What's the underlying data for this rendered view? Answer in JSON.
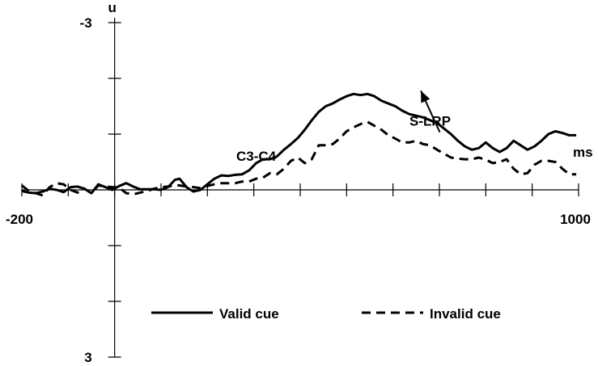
{
  "chart_data": {
    "type": "line",
    "title": "",
    "xlabel": "ms",
    "ylabel": "u",
    "x_unit_label": "ms",
    "y_unit_label": "u",
    "xlim": [
      -200,
      1000
    ],
    "ylim": [
      3,
      -3
    ],
    "y_inverted": true,
    "x_tick_step": 100,
    "y_tick_step": 1,
    "x_tick_labels": [
      {
        "value": -200,
        "text": "-200"
      },
      {
        "value": 1000,
        "text": "1000"
      }
    ],
    "y_tick_labels": [
      {
        "value": -3,
        "text": "-3"
      },
      {
        "value": 3,
        "text": "3"
      }
    ],
    "annotations": [
      {
        "text": "C3-C4",
        "x": 305,
        "y": -0.52
      },
      {
        "text": "S-LRP",
        "x": 680,
        "y": -1.15,
        "target_x": 660,
        "target_y": -1.72,
        "arrow": true
      }
    ],
    "legend": {
      "position": "bottom-center"
    },
    "series": [
      {
        "name": "Valid cue",
        "style": "solid",
        "color": "#000000",
        "x": [
          -200,
          -185,
          -170,
          -155,
          -140,
          -125,
          -110,
          -95,
          -80,
          -65,
          -50,
          -35,
          -20,
          -5,
          10,
          25,
          40,
          55,
          70,
          85,
          100,
          115,
          130,
          140,
          155,
          170,
          185,
          200,
          215,
          230,
          245,
          260,
          275,
          290,
          305,
          320,
          335,
          350,
          365,
          380,
          395,
          410,
          425,
          440,
          455,
          470,
          485,
          500,
          515,
          530,
          545,
          560,
          575,
          590,
          605,
          620,
          635,
          650,
          665,
          680,
          695,
          710,
          725,
          740,
          755,
          770,
          785,
          800,
          815,
          830,
          845,
          860,
          875,
          890,
          905,
          920,
          935,
          950,
          965,
          980,
          995
        ],
        "y": [
          0.02,
          0.05,
          0.06,
          0.03,
          -0.02,
          0.0,
          0.04,
          -0.05,
          -0.06,
          -0.02,
          0.06,
          -0.1,
          -0.05,
          0.0,
          -0.07,
          -0.12,
          -0.06,
          -0.01,
          -0.01,
          -0.01,
          0.0,
          -0.05,
          -0.18,
          -0.2,
          -0.05,
          0.03,
          0.0,
          -0.1,
          -0.2,
          -0.26,
          -0.25,
          -0.27,
          -0.28,
          -0.35,
          -0.48,
          -0.55,
          -0.55,
          -0.6,
          -0.72,
          -0.82,
          -0.93,
          -1.08,
          -1.25,
          -1.4,
          -1.5,
          -1.55,
          -1.62,
          -1.68,
          -1.72,
          -1.7,
          -1.72,
          -1.68,
          -1.6,
          -1.55,
          -1.5,
          -1.42,
          -1.36,
          -1.33,
          -1.3,
          -1.25,
          -1.2,
          -1.1,
          -1.0,
          -0.88,
          -0.78,
          -0.72,
          -0.75,
          -0.85,
          -0.75,
          -0.68,
          -0.75,
          -0.88,
          -0.8,
          -0.72,
          -0.78,
          -0.88,
          -1.0,
          -1.05,
          -1.02,
          -0.98,
          -0.98
        ]
      },
      {
        "name": "Invalid cue",
        "style": "dashed",
        "color": "#000000",
        "x": [
          -200,
          -185,
          -170,
          -155,
          -140,
          -125,
          -110,
          -95,
          -80,
          -65,
          -50,
          -35,
          -20,
          -5,
          10,
          25,
          40,
          55,
          70,
          85,
          100,
          115,
          130,
          140,
          155,
          170,
          185,
          200,
          215,
          230,
          245,
          260,
          275,
          290,
          305,
          320,
          335,
          350,
          365,
          380,
          395,
          410,
          425,
          440,
          455,
          470,
          485,
          500,
          515,
          530,
          545,
          560,
          575,
          590,
          605,
          620,
          635,
          650,
          665,
          680,
          695,
          710,
          725,
          740,
          755,
          770,
          785,
          800,
          815,
          830,
          845,
          860,
          875,
          890,
          905,
          920,
          935,
          950,
          965,
          980,
          995
        ],
        "y": [
          -0.08,
          0.02,
          0.06,
          0.1,
          -0.05,
          -0.12,
          -0.1,
          0.0,
          0.05,
          -0.02,
          0.06,
          -0.08,
          -0.06,
          -0.05,
          -0.04,
          0.06,
          0.08,
          0.05,
          0.02,
          -0.02,
          -0.05,
          -0.06,
          -0.08,
          -0.08,
          -0.06,
          -0.05,
          -0.03,
          -0.07,
          -0.1,
          -0.12,
          -0.12,
          -0.12,
          -0.15,
          -0.15,
          -0.2,
          -0.22,
          -0.3,
          -0.28,
          -0.38,
          -0.52,
          -0.58,
          -0.48,
          -0.55,
          -0.8,
          -0.8,
          -0.82,
          -0.92,
          -1.05,
          -1.12,
          -1.18,
          -1.22,
          -1.15,
          -1.08,
          -0.98,
          -0.92,
          -0.85,
          -0.85,
          -0.88,
          -0.82,
          -0.8,
          -0.72,
          -0.65,
          -0.58,
          -0.56,
          -0.55,
          -0.55,
          -0.58,
          -0.54,
          -0.48,
          -0.5,
          -0.55,
          -0.38,
          -0.28,
          -0.3,
          -0.45,
          -0.52,
          -0.52,
          -0.5,
          -0.38,
          -0.28,
          -0.28
        ]
      }
    ]
  }
}
